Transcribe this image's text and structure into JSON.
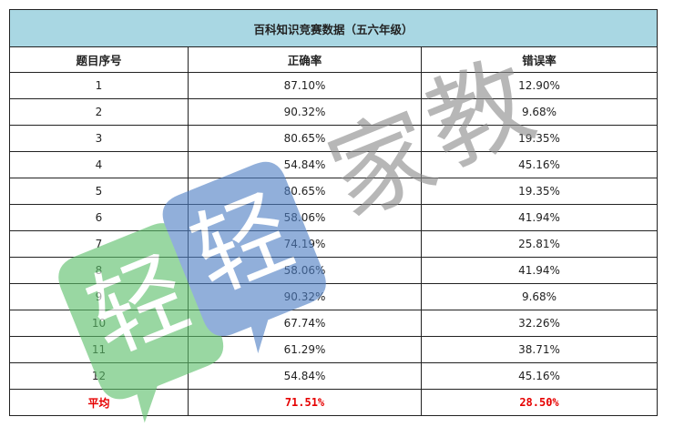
{
  "table": {
    "title": "百科知识竞赛数据（五六年级）",
    "headers": [
      "题目序号",
      "正确率",
      "错误率"
    ],
    "rows": [
      {
        "id": "1",
        "correct": "87.10%",
        "wrong": "12.90%"
      },
      {
        "id": "2",
        "correct": "90.32%",
        "wrong": "9.68%"
      },
      {
        "id": "3",
        "correct": "80.65%",
        "wrong": "19.35%"
      },
      {
        "id": "4",
        "correct": "54.84%",
        "wrong": "45.16%"
      },
      {
        "id": "5",
        "correct": "80.65%",
        "wrong": "19.35%"
      },
      {
        "id": "6",
        "correct": "58.06%",
        "wrong": "41.94%"
      },
      {
        "id": "7",
        "correct": "74.19%",
        "wrong": "25.81%"
      },
      {
        "id": "8",
        "correct": "58.06%",
        "wrong": "41.94%"
      },
      {
        "id": "9",
        "correct": "90.32%",
        "wrong": "9.68%"
      },
      {
        "id": "10",
        "correct": "67.74%",
        "wrong": "32.26%"
      },
      {
        "id": "11",
        "correct": "61.29%",
        "wrong": "38.71%"
      },
      {
        "id": "12",
        "correct": "54.84%",
        "wrong": "45.16%"
      }
    ],
    "average": {
      "label": "平均",
      "correct": "71.51%",
      "wrong": "28.50%"
    }
  },
  "watermark": {
    "text": "轻轻家教",
    "colors": {
      "green": "#5cc06a",
      "blue": "#4f7fc4",
      "gray": "#8c8c8c"
    }
  }
}
